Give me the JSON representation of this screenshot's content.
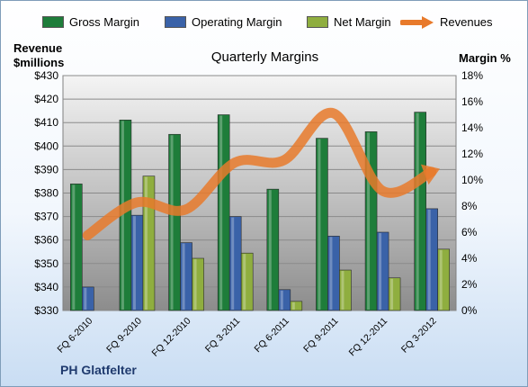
{
  "chart_data": {
    "type": "bar",
    "title": "Quarterly Margins",
    "left_axis_title": [
      "Revenue",
      "$millions"
    ],
    "right_axis_title": "Margin %",
    "categories": [
      "FQ 6-2010",
      "FQ 9-2010",
      "FQ 12-2010",
      "FQ 3-2011",
      "FQ 6-2011",
      "FQ 9-2011",
      "FQ 12-2011",
      "FQ 3-2012"
    ],
    "series": [
      {
        "name": "Gross Margin",
        "type": "bar",
        "axis": "right",
        "color": "#1e7d3a",
        "values": [
          9.7,
          14.6,
          13.5,
          15.0,
          9.3,
          13.2,
          13.7,
          15.2
        ]
      },
      {
        "name": "Operating Margin",
        "type": "bar",
        "axis": "right",
        "color": "#3a62a8",
        "values": [
          1.8,
          7.3,
          5.2,
          7.2,
          1.6,
          5.7,
          6.0,
          7.8
        ]
      },
      {
        "name": "Net Margin",
        "type": "bar",
        "axis": "right",
        "color": "#8fae3f",
        "values": [
          0,
          10.3,
          4.0,
          4.4,
          0.7,
          3.1,
          2.5,
          4.7
        ]
      },
      {
        "name": "Revenues",
        "type": "line",
        "axis": "left",
        "color": "#e87a2b",
        "values": [
          362,
          376,
          373,
          393,
          394,
          414,
          381,
          389
        ]
      }
    ],
    "left_axis": {
      "min": 330,
      "max": 430,
      "step": 10,
      "prefix": "$"
    },
    "right_axis": {
      "min": 0,
      "max": 18,
      "step": 2,
      "suffix": "%"
    },
    "legend_position": "top",
    "grid": true
  },
  "footer": {
    "company": "PH Glatfelter"
  }
}
